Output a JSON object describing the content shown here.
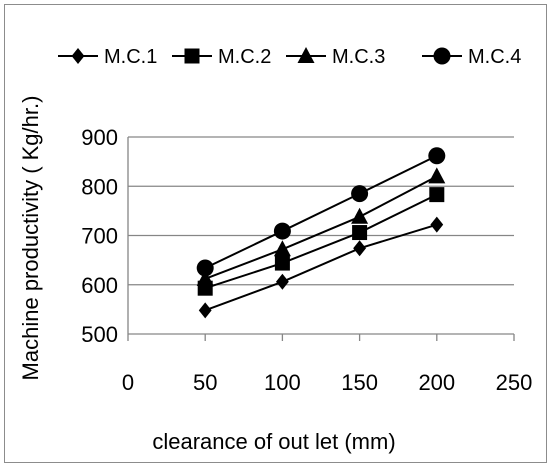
{
  "chart_data": {
    "type": "line",
    "xlabel": "clearance of out let (mm)",
    "ylabel": "Machine productivity ( Kg/hr.)",
    "xlim": [
      0,
      250
    ],
    "ylim": [
      500,
      900
    ],
    "x_ticks": [
      "0",
      "50",
      "100",
      "150",
      "200",
      "250"
    ],
    "y_ticks": [
      "500",
      "600",
      "700",
      "800",
      "900"
    ],
    "grid": "horizontal",
    "legend_position": "top",
    "x": [
      50,
      100,
      150,
      200
    ],
    "series": [
      {
        "name": "M.C.1",
        "marker": "diamond",
        "values": [
          548,
          606,
          674,
          722
        ]
      },
      {
        "name": "M.C.2",
        "marker": "square",
        "values": [
          593,
          644,
          706,
          783
        ]
      },
      {
        "name": "M.C.3",
        "marker": "triangle",
        "values": [
          612,
          672,
          738,
          820
        ]
      },
      {
        "name": "M.C.4",
        "marker": "circle",
        "values": [
          634,
          709,
          785,
          862
        ]
      }
    ],
    "colors": {
      "line": "#000000",
      "grid": "#868686",
      "axis": "#868686"
    }
  }
}
